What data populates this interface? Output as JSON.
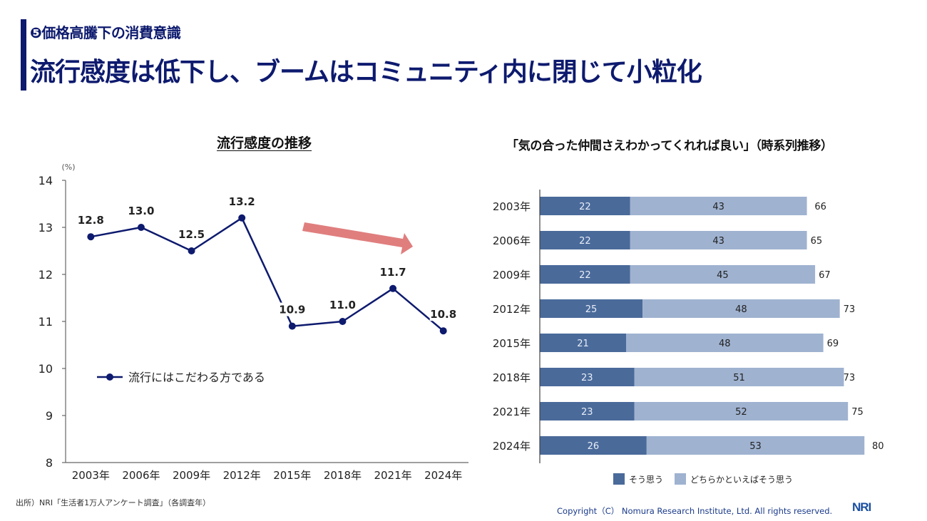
{
  "header": {
    "subtitle": "❺価格高騰下の消費意識",
    "title": "流行感度は低下し、ブームはコミュニティ内に閉じて小粒化"
  },
  "colors": {
    "brand_navy": "#0d1a6e",
    "line": "#0d1a6e",
    "trend_arrow": "#e07e7e",
    "bar_strong": "#4a6a9a",
    "bar_weak": "#9fb2d0"
  },
  "chart_data": [
    {
      "type": "line",
      "title": "流行感度の推移",
      "ylabel": "(%)",
      "xlabel": "",
      "categories": [
        "2003年",
        "2006年",
        "2009年",
        "2012年",
        "2015年",
        "2018年",
        "2021年",
        "2024年"
      ],
      "series": [
        {
          "name": "流行にはこだわる方である",
          "values": [
            12.8,
            13.0,
            12.5,
            13.2,
            10.9,
            11.0,
            11.7,
            10.8
          ]
        }
      ],
      "data_labels": [
        "12.8",
        "13.0",
        "12.5",
        "13.2",
        "10.9",
        "11.0",
        "11.7",
        "10.8"
      ],
      "ylim": [
        8,
        14
      ],
      "yticks": [
        8,
        9,
        10,
        11,
        12,
        13,
        14
      ],
      "grid": false,
      "legend": "middle-left",
      "annotation": "downward trend arrow"
    },
    {
      "type": "bar",
      "orientation": "horizontal",
      "stacked": true,
      "title": "「気の合った仲間さえわかってくれれば良い」（時系列推移）",
      "categories": [
        "2003年",
        "2006年",
        "2009年",
        "2012年",
        "2015年",
        "2018年",
        "2021年",
        "2024年"
      ],
      "series": [
        {
          "name": "そう思う",
          "values": [
            22,
            22,
            22,
            25,
            21,
            23,
            23,
            26
          ]
        },
        {
          "name": "どちらかといえばそう思う",
          "values": [
            43,
            43,
            45,
            48,
            48,
            51,
            52,
            53
          ]
        }
      ],
      "totals": [
        66,
        65,
        67,
        73,
        69,
        73,
        75,
        80
      ],
      "xlim": [
        0,
        80
      ],
      "grid": false,
      "legend": "bottom"
    }
  ],
  "footer": {
    "source": "出所）NRI「生活者1万人アンケート調査」（各調査年）",
    "copyright": "Copyright（C） Nomura Research Institute, Ltd. All rights reserved.",
    "logo": "NRI"
  }
}
